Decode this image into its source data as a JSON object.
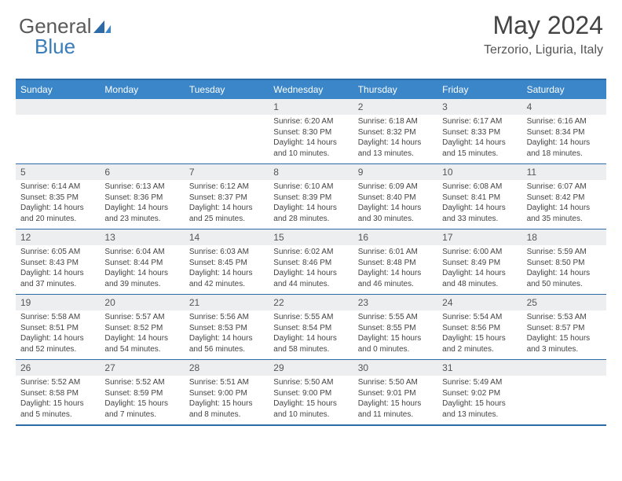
{
  "logo": {
    "part1": "General",
    "part2": "Blue"
  },
  "title": "May 2024",
  "location": "Terzorio, Liguria, Italy",
  "colors": {
    "header_bar": "#3a86c8",
    "border": "#2d6aa8",
    "daynum_bg": "#eceef0",
    "logo_blue": "#3a7db8",
    "logo_gray": "#5a5a5a"
  },
  "daynames": [
    "Sunday",
    "Monday",
    "Tuesday",
    "Wednesday",
    "Thursday",
    "Friday",
    "Saturday"
  ],
  "weeks": [
    [
      {
        "n": "",
        "sr": "",
        "ss": "",
        "dl": ""
      },
      {
        "n": "",
        "sr": "",
        "ss": "",
        "dl": ""
      },
      {
        "n": "",
        "sr": "",
        "ss": "",
        "dl": ""
      },
      {
        "n": "1",
        "sr": "Sunrise: 6:20 AM",
        "ss": "Sunset: 8:30 PM",
        "dl": "Daylight: 14 hours and 10 minutes."
      },
      {
        "n": "2",
        "sr": "Sunrise: 6:18 AM",
        "ss": "Sunset: 8:32 PM",
        "dl": "Daylight: 14 hours and 13 minutes."
      },
      {
        "n": "3",
        "sr": "Sunrise: 6:17 AM",
        "ss": "Sunset: 8:33 PM",
        "dl": "Daylight: 14 hours and 15 minutes."
      },
      {
        "n": "4",
        "sr": "Sunrise: 6:16 AM",
        "ss": "Sunset: 8:34 PM",
        "dl": "Daylight: 14 hours and 18 minutes."
      }
    ],
    [
      {
        "n": "5",
        "sr": "Sunrise: 6:14 AM",
        "ss": "Sunset: 8:35 PM",
        "dl": "Daylight: 14 hours and 20 minutes."
      },
      {
        "n": "6",
        "sr": "Sunrise: 6:13 AM",
        "ss": "Sunset: 8:36 PM",
        "dl": "Daylight: 14 hours and 23 minutes."
      },
      {
        "n": "7",
        "sr": "Sunrise: 6:12 AM",
        "ss": "Sunset: 8:37 PM",
        "dl": "Daylight: 14 hours and 25 minutes."
      },
      {
        "n": "8",
        "sr": "Sunrise: 6:10 AM",
        "ss": "Sunset: 8:39 PM",
        "dl": "Daylight: 14 hours and 28 minutes."
      },
      {
        "n": "9",
        "sr": "Sunrise: 6:09 AM",
        "ss": "Sunset: 8:40 PM",
        "dl": "Daylight: 14 hours and 30 minutes."
      },
      {
        "n": "10",
        "sr": "Sunrise: 6:08 AM",
        "ss": "Sunset: 8:41 PM",
        "dl": "Daylight: 14 hours and 33 minutes."
      },
      {
        "n": "11",
        "sr": "Sunrise: 6:07 AM",
        "ss": "Sunset: 8:42 PM",
        "dl": "Daylight: 14 hours and 35 minutes."
      }
    ],
    [
      {
        "n": "12",
        "sr": "Sunrise: 6:05 AM",
        "ss": "Sunset: 8:43 PM",
        "dl": "Daylight: 14 hours and 37 minutes."
      },
      {
        "n": "13",
        "sr": "Sunrise: 6:04 AM",
        "ss": "Sunset: 8:44 PM",
        "dl": "Daylight: 14 hours and 39 minutes."
      },
      {
        "n": "14",
        "sr": "Sunrise: 6:03 AM",
        "ss": "Sunset: 8:45 PM",
        "dl": "Daylight: 14 hours and 42 minutes."
      },
      {
        "n": "15",
        "sr": "Sunrise: 6:02 AM",
        "ss": "Sunset: 8:46 PM",
        "dl": "Daylight: 14 hours and 44 minutes."
      },
      {
        "n": "16",
        "sr": "Sunrise: 6:01 AM",
        "ss": "Sunset: 8:48 PM",
        "dl": "Daylight: 14 hours and 46 minutes."
      },
      {
        "n": "17",
        "sr": "Sunrise: 6:00 AM",
        "ss": "Sunset: 8:49 PM",
        "dl": "Daylight: 14 hours and 48 minutes."
      },
      {
        "n": "18",
        "sr": "Sunrise: 5:59 AM",
        "ss": "Sunset: 8:50 PM",
        "dl": "Daylight: 14 hours and 50 minutes."
      }
    ],
    [
      {
        "n": "19",
        "sr": "Sunrise: 5:58 AM",
        "ss": "Sunset: 8:51 PM",
        "dl": "Daylight: 14 hours and 52 minutes."
      },
      {
        "n": "20",
        "sr": "Sunrise: 5:57 AM",
        "ss": "Sunset: 8:52 PM",
        "dl": "Daylight: 14 hours and 54 minutes."
      },
      {
        "n": "21",
        "sr": "Sunrise: 5:56 AM",
        "ss": "Sunset: 8:53 PM",
        "dl": "Daylight: 14 hours and 56 minutes."
      },
      {
        "n": "22",
        "sr": "Sunrise: 5:55 AM",
        "ss": "Sunset: 8:54 PM",
        "dl": "Daylight: 14 hours and 58 minutes."
      },
      {
        "n": "23",
        "sr": "Sunrise: 5:55 AM",
        "ss": "Sunset: 8:55 PM",
        "dl": "Daylight: 15 hours and 0 minutes."
      },
      {
        "n": "24",
        "sr": "Sunrise: 5:54 AM",
        "ss": "Sunset: 8:56 PM",
        "dl": "Daylight: 15 hours and 2 minutes."
      },
      {
        "n": "25",
        "sr": "Sunrise: 5:53 AM",
        "ss": "Sunset: 8:57 PM",
        "dl": "Daylight: 15 hours and 3 minutes."
      }
    ],
    [
      {
        "n": "26",
        "sr": "Sunrise: 5:52 AM",
        "ss": "Sunset: 8:58 PM",
        "dl": "Daylight: 15 hours and 5 minutes."
      },
      {
        "n": "27",
        "sr": "Sunrise: 5:52 AM",
        "ss": "Sunset: 8:59 PM",
        "dl": "Daylight: 15 hours and 7 minutes."
      },
      {
        "n": "28",
        "sr": "Sunrise: 5:51 AM",
        "ss": "Sunset: 9:00 PM",
        "dl": "Daylight: 15 hours and 8 minutes."
      },
      {
        "n": "29",
        "sr": "Sunrise: 5:50 AM",
        "ss": "Sunset: 9:00 PM",
        "dl": "Daylight: 15 hours and 10 minutes."
      },
      {
        "n": "30",
        "sr": "Sunrise: 5:50 AM",
        "ss": "Sunset: 9:01 PM",
        "dl": "Daylight: 15 hours and 11 minutes."
      },
      {
        "n": "31",
        "sr": "Sunrise: 5:49 AM",
        "ss": "Sunset: 9:02 PM",
        "dl": "Daylight: 15 hours and 13 minutes."
      },
      {
        "n": "",
        "sr": "",
        "ss": "",
        "dl": ""
      }
    ]
  ]
}
